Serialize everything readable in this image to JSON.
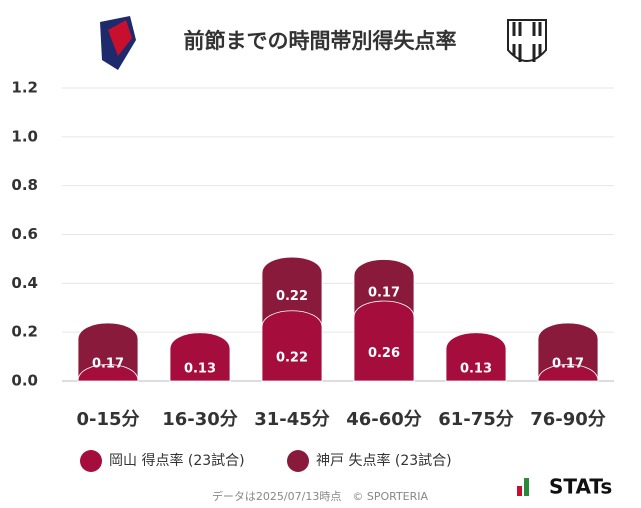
{
  "chart_data": {
    "type": "stacked-bar",
    "title": "前節までの時間帯別得失点率",
    "categories": [
      "0-15分",
      "16-30分",
      "31-45分",
      "46-60分",
      "61-75分",
      "76-90分"
    ],
    "series": [
      {
        "name": "岡山 得点率 (23試合)",
        "color": "#a50d3d",
        "values": [
          0,
          0.13,
          0.22,
          0.26,
          0.13,
          0
        ]
      },
      {
        "name": "神戸 失点率 (23試合)",
        "color": "#8a1a3b",
        "values": [
          0.17,
          0,
          0.22,
          0.17,
          0,
          0.17
        ]
      }
    ],
    "ylim": [
      0,
      1.2
    ],
    "yticks": [
      {
        "value": 0,
        "label": "0.0"
      },
      0.2,
      0.4,
      0.6,
      0.8,
      {
        "value": 1,
        "label": "1.0"
      },
      1.2
    ],
    "grid": true,
    "footer": "データは2025/07/13時点　© SPORTERIA",
    "brand": "STATs"
  }
}
